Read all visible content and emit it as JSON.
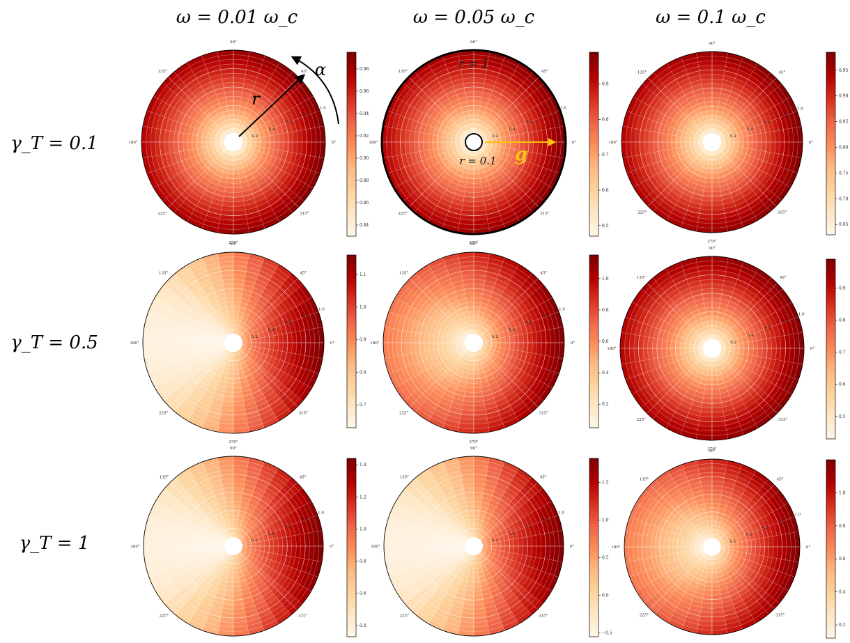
{
  "figure": {
    "column_headers": [
      "ω = 0.01 ω_c",
      "ω = 0.05 ω_c",
      "ω = 0.1 ω_c"
    ],
    "row_headers": [
      "γ_T = 0.1",
      "γ_T = 0.5",
      "γ_T = 1"
    ],
    "angle_labels": [
      "0°",
      "45°",
      "90°",
      "135°",
      "180°",
      "225°",
      "270°",
      "315°"
    ],
    "radial_labels": [
      "0.2",
      "0.4",
      "0.6",
      "0.8",
      "1.0"
    ],
    "annotations": {
      "radius_symbol": "r",
      "angle_symbol": "α",
      "outer_radius": "r = 1",
      "inner_radius": "r = 0.1",
      "field_vector": "g"
    },
    "colors": {
      "cmap": [
        "#fff7ec",
        "#fee8c8",
        "#fdd49e",
        "#fdbb84",
        "#fc8d59",
        "#ef6548",
        "#d7301f",
        "#b30000",
        "#7f0000"
      ],
      "field_arrow": "#ffc20e"
    }
  },
  "chart_data": [
    {
      "type": "heatmap",
      "row": 0,
      "col": 0,
      "subtype": "polar",
      "r_range": [
        0.1,
        1.0
      ],
      "theta_range_deg": [
        0,
        360
      ],
      "asymmetry": "low",
      "clim": [
        0.83,
        0.995
      ],
      "colorbar_ticks": [
        "0.84",
        "0.86",
        "0.88",
        "0.90",
        "0.92",
        "0.94",
        "0.96",
        "0.98"
      ]
    },
    {
      "type": "heatmap",
      "row": 0,
      "col": 1,
      "subtype": "polar",
      "r_range": [
        0.1,
        1.0
      ],
      "theta_range_deg": [
        0,
        360
      ],
      "asymmetry": "low",
      "clim": [
        0.47,
        0.99
      ],
      "colorbar_ticks": [
        "0.5",
        "0.6",
        "0.7",
        "0.8",
        "0.9"
      ]
    },
    {
      "type": "heatmap",
      "row": 0,
      "col": 2,
      "subtype": "polar",
      "r_range": [
        0.1,
        1.0
      ],
      "theta_range_deg": [
        0,
        360
      ],
      "asymmetry": "low",
      "clim": [
        0.63,
        0.985
      ],
      "colorbar_ticks": [
        "0.65",
        "0.70",
        "0.75",
        "0.80",
        "0.85",
        "0.90",
        "0.95"
      ]
    },
    {
      "type": "heatmap",
      "row": 1,
      "col": 0,
      "subtype": "polar",
      "r_range": [
        0.1,
        1.0
      ],
      "theta_range_deg": [
        0,
        360
      ],
      "asymmetry": "high",
      "clim": [
        0.63,
        1.16
      ],
      "colorbar_ticks": [
        "0.7",
        "0.8",
        "0.9",
        "1.0",
        "1.1"
      ]
    },
    {
      "type": "heatmap",
      "row": 1,
      "col": 1,
      "subtype": "polar",
      "r_range": [
        0.1,
        1.0
      ],
      "theta_range_deg": [
        0,
        360
      ],
      "asymmetry": "medium",
      "clim": [
        0.05,
        1.15
      ],
      "colorbar_ticks": [
        "0.2",
        "0.4",
        "0.6",
        "0.8",
        "1.0"
      ]
    },
    {
      "type": "heatmap",
      "row": 1,
      "col": 2,
      "subtype": "polar",
      "r_range": [
        0.1,
        1.0
      ],
      "theta_range_deg": [
        0,
        360
      ],
      "asymmetry": "low",
      "clim": [
        0.43,
        0.99
      ],
      "colorbar_ticks": [
        "0.5",
        "0.6",
        "0.7",
        "0.8",
        "0.9"
      ]
    },
    {
      "type": "heatmap",
      "row": 2,
      "col": 0,
      "subtype": "polar",
      "r_range": [
        0.1,
        1.0
      ],
      "theta_range_deg": [
        0,
        360
      ],
      "asymmetry": "high",
      "clim": [
        0.33,
        1.44
      ],
      "colorbar_ticks": [
        "0.4",
        "0.6",
        "0.8",
        "1.0",
        "1.2",
        "1.4"
      ]
    },
    {
      "type": "heatmap",
      "row": 2,
      "col": 1,
      "subtype": "polar",
      "r_range": [
        0.1,
        1.0
      ],
      "theta_range_deg": [
        0,
        360
      ],
      "asymmetry": "high",
      "clim": [
        -0.55,
        1.82
      ],
      "colorbar_ticks": [
        "−0.5",
        "0.0",
        "0.5",
        "1.0",
        "1.5"
      ]
    },
    {
      "type": "heatmap",
      "row": 2,
      "col": 2,
      "subtype": "polar",
      "r_range": [
        0.1,
        1.0
      ],
      "theta_range_deg": [
        0,
        360
      ],
      "asymmetry": "medium",
      "clim": [
        0.12,
        1.2
      ],
      "colorbar_ticks": [
        "0.2",
        "0.4",
        "0.6",
        "0.8",
        "1.0"
      ]
    }
  ]
}
